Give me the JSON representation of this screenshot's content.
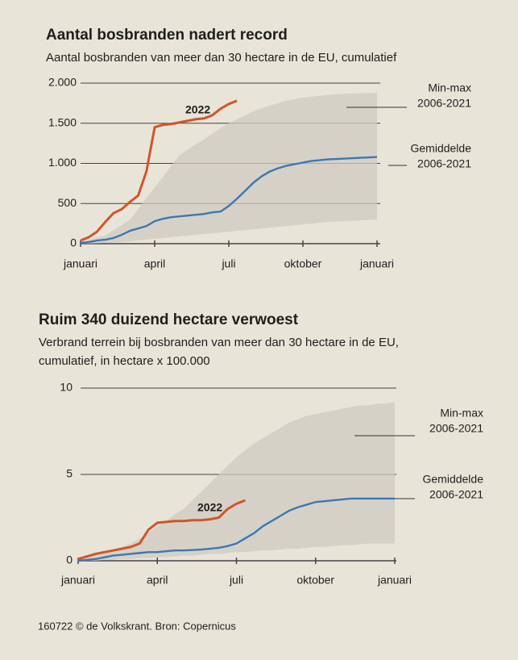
{
  "chart_data": [
    {
      "type": "line",
      "title": "Aantal bosbranden nadert record",
      "subtitle": [
        "Aantal bosbranden van meer dan 30 hectare in de EU, cumulatief"
      ],
      "categories": [
        "januari",
        null,
        null,
        null,
        null,
        null,
        null,
        null,
        null,
        "april",
        null,
        null,
        null,
        null,
        null,
        null,
        null,
        null,
        "juli",
        null,
        null,
        null,
        null,
        null,
        null,
        null,
        null,
        "oktober",
        null,
        null,
        null,
        null,
        null,
        null,
        null,
        null,
        "januari"
      ],
      "ylim": [
        0,
        2000
      ],
      "yticks": [
        0,
        500,
        {
          "value": 1000,
          "label": "1.000"
        },
        {
          "value": 1500,
          "label": "1.500"
        },
        {
          "value": 2000,
          "label": "2.000"
        }
      ],
      "grid": true,
      "series": [
        {
          "name": [
            "Min-max",
            "2006-2021"
          ],
          "type": "band",
          "color": "#cfcbc2",
          "values": [
            0,
            0,
            5,
            10,
            15,
            20,
            30,
            40,
            50,
            60,
            70,
            80,
            90,
            100,
            110,
            120,
            130,
            140,
            150,
            160,
            170,
            180,
            190,
            200,
            210,
            220,
            230,
            240,
            250,
            260,
            270,
            275,
            280,
            285,
            290,
            295,
            300
          ],
          "upper": [
            20,
            50,
            80,
            100,
            170,
            230,
            300,
            430,
            570,
            700,
            830,
            970,
            1100,
            1170,
            1240,
            1300,
            1370,
            1440,
            1500,
            1550,
            1600,
            1650,
            1690,
            1720,
            1750,
            1780,
            1800,
            1820,
            1830,
            1840,
            1850,
            1860,
            1865,
            1870,
            1875,
            1878,
            1880
          ]
        },
        {
          "name": [
            "Gemiddelde",
            "2006-2021"
          ],
          "type": "line",
          "color": "#3a78b5",
          "values": [
            10,
            20,
            40,
            50,
            70,
            110,
            160,
            190,
            220,
            280,
            310,
            330,
            340,
            350,
            360,
            370,
            390,
            400,
            470,
            560,
            660,
            760,
            840,
            900,
            940,
            970,
            990,
            1010,
            1030,
            1040,
            1050,
            1055,
            1060,
            1065,
            1070,
            1075,
            1080
          ]
        },
        {
          "name": [
            "2022"
          ],
          "type": "line",
          "color": "#d2542a",
          "values": [
            40,
            80,
            150,
            270,
            380,
            430,
            520,
            600,
            900,
            1450,
            1480,
            1490,
            1510,
            1530,
            1550,
            1560,
            1600,
            1680,
            1740,
            1780,
            null,
            null,
            null,
            null,
            null,
            null,
            null,
            null,
            null,
            null,
            null,
            null,
            null,
            null,
            null,
            null,
            null
          ]
        }
      ]
    },
    {
      "type": "line",
      "title": "Ruim 340 duizend hectare verwoest",
      "subtitle": [
        "Verbrand terrein bij bosbranden van meer dan 30 hectare in de EU,",
        "cumulatief, in hectare x 100.000"
      ],
      "categories": [
        "januari",
        null,
        null,
        null,
        null,
        null,
        null,
        null,
        null,
        "april",
        null,
        null,
        null,
        null,
        null,
        null,
        null,
        null,
        "juli",
        null,
        null,
        null,
        null,
        null,
        null,
        null,
        null,
        "oktober",
        null,
        null,
        null,
        null,
        null,
        null,
        null,
        null,
        "januari"
      ],
      "ylim": [
        0,
        10
      ],
      "yticks": [
        0,
        5,
        10
      ],
      "grid": true,
      "series": [
        {
          "name": [
            "Min-max",
            "2006-2021"
          ],
          "type": "band",
          "color": "#cfcbc2",
          "values": [
            0,
            0,
            0,
            0.05,
            0.05,
            0.1,
            0.1,
            0.15,
            0.15,
            0.2,
            0.2,
            0.25,
            0.3,
            0.3,
            0.35,
            0.4,
            0.4,
            0.45,
            0.5,
            0.5,
            0.55,
            0.6,
            0.6,
            0.65,
            0.7,
            0.7,
            0.75,
            0.8,
            0.8,
            0.85,
            0.9,
            0.9,
            0.95,
            1,
            1,
            1,
            1
          ],
          "upper": [
            0.2,
            0.3,
            0.4,
            0.5,
            0.6,
            0.8,
            1,
            1.3,
            1.6,
            2,
            2.3,
            2.7,
            3,
            3.5,
            4,
            4.5,
            5,
            5.5,
            6,
            6.4,
            6.8,
            7.1,
            7.4,
            7.7,
            8,
            8.2,
            8.4,
            8.5,
            8.6,
            8.7,
            8.8,
            8.9,
            9,
            9,
            9.1,
            9.1,
            9.2
          ]
        },
        {
          "name": [
            "Gemiddelde",
            "2006-2021"
          ],
          "type": "line",
          "color": "#3a78b5",
          "values": [
            0,
            0.05,
            0.1,
            0.2,
            0.3,
            0.35,
            0.4,
            0.45,
            0.5,
            0.5,
            0.55,
            0.6,
            0.6,
            0.62,
            0.65,
            0.7,
            0.75,
            0.85,
            1,
            1.3,
            1.6,
            2,
            2.3,
            2.6,
            2.9,
            3.1,
            3.25,
            3.4,
            3.45,
            3.5,
            3.55,
            3.6,
            3.6,
            3.6,
            3.6,
            3.6,
            3.6
          ]
        },
        {
          "name": [
            "2022"
          ],
          "type": "line",
          "color": "#d2542a",
          "values": [
            0.1,
            0.25,
            0.4,
            0.5,
            0.6,
            0.7,
            0.8,
            1,
            1.8,
            2.2,
            2.25,
            2.3,
            2.3,
            2.35,
            2.35,
            2.4,
            2.5,
            3,
            3.3,
            3.5,
            null,
            null,
            null,
            null,
            null,
            null,
            null,
            null,
            null,
            null,
            null,
            null,
            null,
            null,
            null,
            null,
            null
          ]
        }
      ]
    }
  ],
  "footer": "160722 © de Volkskrant. Bron: Copernicus"
}
